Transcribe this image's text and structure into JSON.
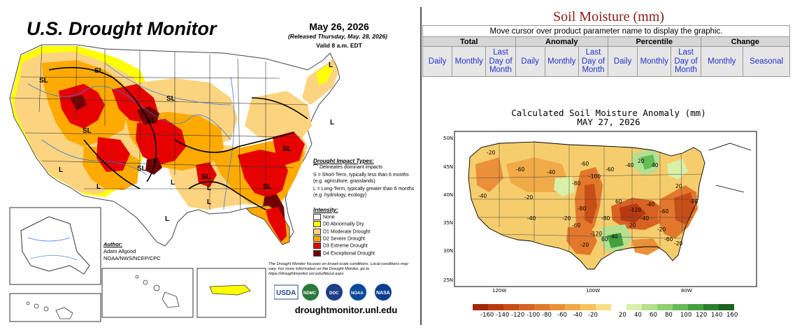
{
  "drought_monitor": {
    "title": "U.S. Drought Monitor",
    "date": "May 26, 2026",
    "released": "(Released Thursday, May. 28, 2026)",
    "valid": "Valid 8 a.m. EDT",
    "impact_types_header": "Drought Impact Types:",
    "impact_delineates": "Delineates dominant impacts",
    "impact_s": "S = Short-Term, typically less than 6 months (e.g. agriculture, grasslands)",
    "impact_l": "L = Long-Term, typically greater than 6 months (e.g. hydrology, ecology)",
    "intensity_header": "Intensity:",
    "intensity": [
      {
        "label": "None",
        "color": "#ffffff"
      },
      {
        "label": "D0 Abnormally Dry",
        "color": "#ffff00"
      },
      {
        "label": "D1 Moderate Drought",
        "color": "#fcd37f"
      },
      {
        "label": "D2 Severe Drought",
        "color": "#ffaa00"
      },
      {
        "label": "D3 Extreme Drought",
        "color": "#e60000"
      },
      {
        "label": "D4 Exceptional Drought",
        "color": "#730000"
      }
    ],
    "author_header": "Author:",
    "author_name": "Adam Allgood",
    "author_org": "NOAA/NWS/NCEP/CPC",
    "note": "The Drought Monitor focuses on broad-scale conditions. Local conditions may vary. For more information on the Drought Monitor, go to https://droughtmonitor.unl.edu/About.aspx",
    "logos": [
      "USDA",
      "NDMC",
      "DOC",
      "NOAA",
      "NASA"
    ],
    "url": "droughtmonitor.unl.edu",
    "map_labels": [
      "SL",
      "SL",
      "SL",
      "SL",
      "SL",
      "SL",
      "SL",
      "SL",
      "SL",
      "L",
      "L",
      "L",
      "L",
      "L",
      "L",
      "L",
      "L"
    ]
  },
  "soil_moisture": {
    "title": "Soil Moisture (mm)",
    "instruction": "Move cursor over product parameter name to display the graphic.",
    "groups": [
      "Total",
      "Anomaly",
      "Percentile",
      "Change"
    ],
    "links": {
      "total": [
        "Daily",
        "Monthly",
        "Last Day of Month"
      ],
      "anomaly": [
        "Daily",
        "Monthly",
        "Last Day of Month"
      ],
      "percentile": [
        "Daily",
        "Monthly",
        "Last Day of Month"
      ],
      "change": [
        "Monthly",
        "Seasonal"
      ]
    },
    "chart_title": "Calculated Soil Moisture Anomaly (mm)",
    "chart_date": "MAY 27, 2026",
    "lat_labels": [
      "50N",
      "45N",
      "40N",
      "35N",
      "30N",
      "25N"
    ],
    "lon_labels": [
      "120W",
      "100W",
      "80W"
    ],
    "colorbar_labels": [
      "-160",
      "-140",
      "-120",
      "-100",
      "-80",
      "-60",
      "-40",
      "-20",
      "20",
      "40",
      "60",
      "80",
      "100",
      "120",
      "140",
      "160"
    ],
    "colorbar_colors": [
      "#a02808",
      "#b83a10",
      "#c84e18",
      "#d86222",
      "#e2782c",
      "#ea9038",
      "#f0aa48",
      "#f5c460",
      "#f9de88",
      "#ffffff",
      "#d8f0a8",
      "#b4e090",
      "#8cd070",
      "#66bc58",
      "#44a040",
      "#2c8030",
      "#1c6020"
    ],
    "contour_labels": [
      "-20",
      "-40",
      "-60",
      "-20",
      "-40",
      "-60",
      "-80",
      "-100",
      "-20",
      "-40",
      "-80",
      "-120",
      "-60",
      "-40",
      "20",
      "40",
      "20",
      "60",
      "40",
      "-40",
      "-60",
      "-80",
      "-20",
      "20",
      "-40",
      "60",
      "-20",
      "-120",
      "-60",
      "-80",
      "-20",
      "-60"
    ]
  }
}
